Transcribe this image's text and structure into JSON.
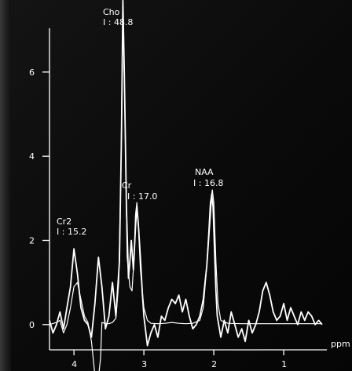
{
  "chart_data": {
    "type": "line",
    "xlabel": "ppm",
    "x_reversed": true,
    "xlim": [
      4.35,
      0.45
    ],
    "ylim": [
      -0.6,
      7.6
    ],
    "x_ticks": [
      4,
      3,
      2,
      1
    ],
    "y_ticks": [
      0,
      2,
      4,
      6
    ],
    "grid": false,
    "series": [
      {
        "kind": "measured",
        "color": "#ffffff",
        "x": [
          4.35,
          4.3,
          4.25,
          4.2,
          4.15,
          4.1,
          4.05,
          4.0,
          3.95,
          3.9,
          3.85,
          3.8,
          3.75,
          3.7,
          3.65,
          3.6,
          3.55,
          3.5,
          3.45,
          3.4,
          3.35,
          3.32,
          3.3,
          3.28,
          3.25,
          3.22,
          3.2,
          3.18,
          3.15,
          3.12,
          3.1,
          3.08,
          3.05,
          3.02,
          3.0,
          2.95,
          2.9,
          2.85,
          2.8,
          2.75,
          2.7,
          2.65,
          2.6,
          2.55,
          2.5,
          2.45,
          2.4,
          2.35,
          2.3,
          2.25,
          2.2,
          2.15,
          2.1,
          2.05,
          2.03,
          2.01,
          1.99,
          1.97,
          1.95,
          1.9,
          1.85,
          1.8,
          1.75,
          1.7,
          1.65,
          1.6,
          1.55,
          1.5,
          1.45,
          1.4,
          1.35,
          1.3,
          1.25,
          1.2,
          1.15,
          1.1,
          1.05,
          1.0,
          0.95,
          0.9,
          0.85,
          0.8,
          0.75,
          0.7,
          0.65,
          0.6,
          0.55,
          0.5,
          0.45
        ],
        "y": [
          0.1,
          -0.2,
          0.0,
          0.3,
          -0.1,
          0.4,
          0.9,
          1.8,
          1.2,
          0.4,
          0.1,
          0.0,
          -0.3,
          0.5,
          1.6,
          0.9,
          -0.1,
          0.2,
          1.0,
          0.2,
          1.5,
          4.5,
          7.7,
          6.0,
          2.8,
          1.1,
          1.5,
          2.0,
          1.3,
          2.3,
          2.8,
          2.4,
          1.6,
          0.7,
          0.2,
          -0.5,
          -0.2,
          0.0,
          -0.3,
          0.2,
          0.1,
          0.4,
          0.6,
          0.5,
          0.7,
          0.3,
          0.6,
          0.2,
          -0.1,
          0.0,
          0.2,
          0.6,
          1.4,
          2.6,
          3.1,
          2.8,
          1.8,
          0.8,
          0.2,
          -0.3,
          0.1,
          -0.2,
          0.3,
          0.0,
          -0.3,
          -0.1,
          -0.4,
          0.1,
          -0.2,
          0.0,
          0.3,
          0.8,
          1.0,
          0.7,
          0.3,
          0.1,
          0.2,
          0.5,
          0.1,
          0.4,
          0.2,
          0.0,
          0.3,
          0.1,
          0.3,
          0.2,
          0.0,
          0.1,
          0.0
        ]
      },
      {
        "kind": "fit",
        "color": "#ffffff",
        "x": [
          4.35,
          4.25,
          4.2,
          4.15,
          4.1,
          4.05,
          4.0,
          3.95,
          3.9,
          3.85,
          3.8,
          3.75,
          3.7,
          3.66,
          3.62,
          3.6,
          3.55,
          3.5,
          3.45,
          3.4,
          3.36,
          3.33,
          3.3,
          3.27,
          3.24,
          3.2,
          3.17,
          3.14,
          3.12,
          3.1,
          3.08,
          3.05,
          3.0,
          2.95,
          2.9,
          2.8,
          2.7,
          2.6,
          2.5,
          2.4,
          2.3,
          2.2,
          2.15,
          2.1,
          2.05,
          2.02,
          2.0,
          1.97,
          1.94,
          1.9,
          1.8,
          1.6,
          1.4,
          1.2,
          1.0,
          0.8,
          0.6,
          0.45
        ],
        "y": [
          0.0,
          0.05,
          0.1,
          -0.2,
          0.0,
          0.4,
          0.9,
          1.0,
          0.6,
          0.2,
          0.05,
          -0.4,
          -1.2,
          -1.4,
          -0.8,
          0.05,
          0.02,
          0.02,
          0.05,
          0.15,
          1.0,
          3.5,
          7.5,
          5.0,
          1.6,
          0.9,
          0.8,
          1.6,
          2.6,
          2.9,
          2.4,
          1.3,
          0.4,
          0.1,
          0.03,
          0.02,
          0.03,
          0.05,
          0.03,
          0.02,
          0.03,
          0.1,
          0.4,
          1.4,
          2.9,
          3.2,
          2.9,
          1.5,
          0.5,
          0.1,
          0.03,
          0.02,
          0.02,
          0.02,
          0.02,
          0.02,
          0.02,
          0.02
        ]
      }
    ],
    "annotations": [
      {
        "name": "Cho",
        "value_label": "I : 48.8",
        "ppm": 3.25
      },
      {
        "name": "Cr",
        "value_label": "I : 17.0",
        "ppm": 3.0
      },
      {
        "name": "NAA",
        "value_label": "I : 16.8",
        "ppm": 2.01
      },
      {
        "name": "Cr2",
        "value_label": "I : 15.2",
        "ppm": 4.0
      }
    ]
  }
}
